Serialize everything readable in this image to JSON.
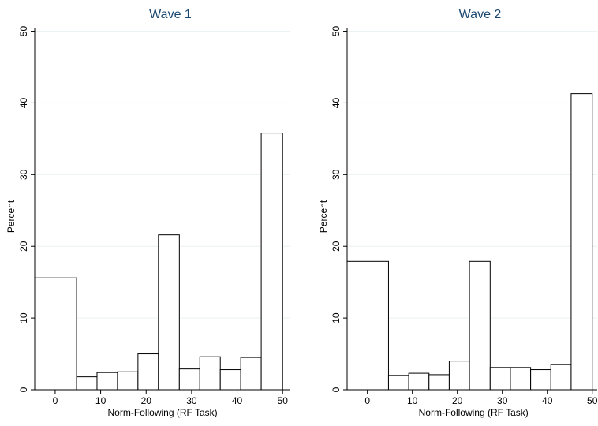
{
  "chart_data": [
    {
      "type": "histogram",
      "title": "Wave 1",
      "x_label": "Norm-Following (RF Task)",
      "y_label": "Percent",
      "bins": [
        -4.5,
        4.7,
        9.2,
        13.7,
        18.2,
        22.7,
        27.3,
        31.8,
        36.3,
        40.8,
        45.3,
        50
      ],
      "values": [
        15.6,
        1.8,
        2.4,
        2.5,
        5.0,
        21.6,
        2.9,
        4.6,
        2.8,
        4.5,
        35.8
      ],
      "xlim": [
        -4.5,
        51.7
      ],
      "xticks": [
        0,
        10,
        20,
        30,
        40,
        50
      ],
      "ylim": [
        0,
        50.5
      ],
      "yticks": [
        0,
        10,
        20,
        30,
        40,
        50
      ],
      "grid": true,
      "color": "#ffffff"
    },
    {
      "type": "histogram",
      "title": "Wave 2",
      "x_label": "Norm-Following (RF Task)",
      "y_label": "Percent",
      "bins": [
        -4.5,
        4.7,
        9.2,
        13.7,
        18.2,
        22.7,
        27.3,
        31.8,
        36.3,
        40.8,
        45.3,
        50
      ],
      "values": [
        17.9,
        2.0,
        2.3,
        2.1,
        4.0,
        17.9,
        3.1,
        3.1,
        2.8,
        3.5,
        41.3
      ],
      "xlim": [
        -4.5,
        51.1
      ],
      "xticks": [
        0,
        10,
        20,
        30,
        40,
        50
      ],
      "ylim": [
        0,
        50.5
      ],
      "yticks": [
        0,
        10,
        20,
        30,
        40,
        50
      ],
      "grid": true,
      "color": "#ffffff"
    }
  ]
}
